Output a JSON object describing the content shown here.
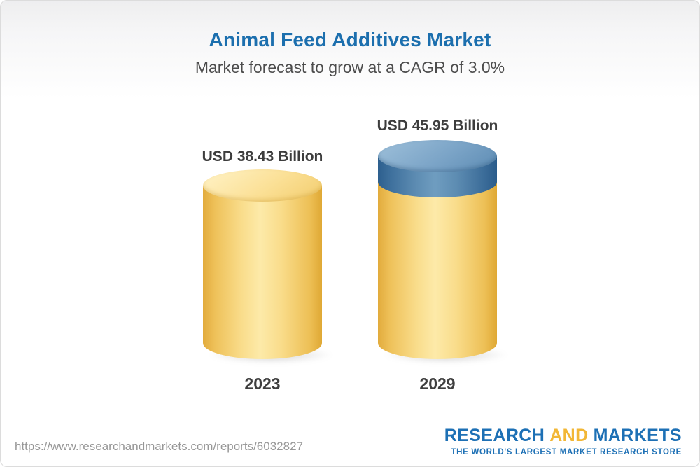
{
  "header": {
    "title": "Animal Feed Additives Market",
    "subtitle": "Market forecast to grow at a CAGR of 3.0%"
  },
  "chart_data": {
    "type": "bar",
    "variant": "3d-cylinder",
    "title": "Animal Feed Additives Market",
    "subtitle": "Market forecast to grow at a CAGR of 3.0%",
    "cagr_percent": 3.0,
    "unit": "USD Billion",
    "categories": [
      "2023",
      "2029"
    ],
    "values": [
      38.43,
      45.95
    ],
    "value_labels": [
      "USD 38.43 Billion",
      "USD 45.95 Billion"
    ],
    "series_colors": [
      "#f7d683",
      "#5d8cb2"
    ],
    "growth_segment_color": "#5d8cb2",
    "legend": "none",
    "grid": false,
    "ylim": [
      0,
      50
    ]
  },
  "footer": {
    "url": "https://www.researchandmarkets.com/reports/6032827",
    "logo": {
      "part1": "RESEARCH",
      "part2": "AND",
      "part3": "MARKETS",
      "tagline": "THE WORLD'S LARGEST MARKET RESEARCH STORE"
    }
  },
  "colors": {
    "title_blue": "#1c6fae",
    "subtitle_gray": "#4c4c4c",
    "label_dark": "#3d3d3d",
    "cylinder_gold": "#f7d683",
    "cylinder_blue": "#5d8cb2",
    "url_gray": "#979797",
    "logo_blue": "#1d70b5",
    "logo_gold": "#f2b736"
  }
}
